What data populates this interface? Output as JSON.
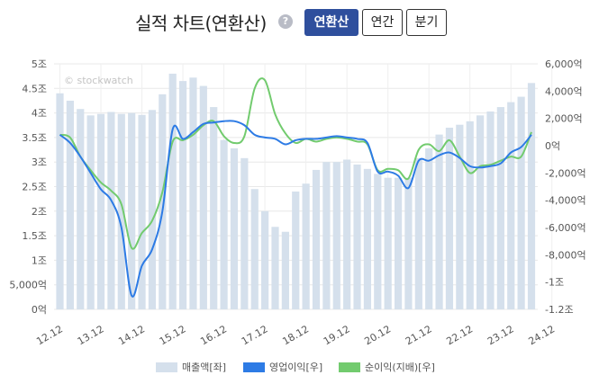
{
  "header": {
    "title": "실적 차트(연환산)",
    "help_icon": "?",
    "buttons": [
      "연환산",
      "연간",
      "분기"
    ],
    "active_button": "연환산"
  },
  "watermark": "© stockwatch",
  "legend": [
    {
      "label": "매출액[좌]",
      "color": "#d5e0ec"
    },
    {
      "label": "영업이익[우]",
      "color": "#2d7be5"
    },
    {
      "label": "순이익(지배)[우]",
      "color": "#72cb6e"
    }
  ],
  "chart_data": {
    "type": "bar",
    "x_tick_labels": [
      "12.12",
      "13.12",
      "14.12",
      "15.12",
      "16.12",
      "17.12",
      "18.12",
      "19.12",
      "20.12",
      "21.12",
      "22.12",
      "23.12",
      "24.12"
    ],
    "left_axis": {
      "ticks": [
        0,
        5000,
        10000,
        15000,
        20000,
        25000,
        30000,
        35000,
        40000,
        45000,
        50000
      ],
      "tick_labels": [
        "0억",
        "5,000억",
        "1조",
        "1.5조",
        "2조",
        "2.5조",
        "3조",
        "3.5조",
        "4조",
        "4.5조",
        "5조"
      ],
      "ylim": [
        0,
        50000
      ],
      "unit": "억"
    },
    "right_axis": {
      "ticks": [
        -12000,
        -10000,
        -8000,
        -6000,
        -4000,
        -2000,
        0,
        2000,
        4000,
        6000
      ],
      "tick_labels": [
        "-1.2조",
        "-1조",
        "-8,000억",
        "-6,000억",
        "-4,000억",
        "-2,000억",
        "0억",
        "2,000억",
        "4,000억",
        "6,000억"
      ],
      "ylim": [
        -12000,
        6000
      ],
      "unit": "억"
    },
    "grid": true,
    "legend_position": "bottom",
    "series": [
      {
        "name": "매출액[좌]",
        "type": "bar",
        "axis": "left",
        "values": [
          44000,
          42500,
          40800,
          39500,
          39800,
          40200,
          39800,
          40000,
          39600,
          40600,
          43800,
          48000,
          46500,
          47200,
          45500,
          41200,
          34500,
          32800,
          30800,
          24500,
          20000,
          16800,
          15800,
          24000,
          25600,
          28400,
          30000,
          30000,
          30500,
          29500,
          28600,
          27600,
          26800,
          26800,
          26800,
          30800,
          32800,
          35600,
          37000,
          37600,
          38300,
          39500,
          40300,
          41200,
          42200,
          43300,
          46100
        ]
      },
      {
        "name": "영업이익[우]",
        "type": "line",
        "axis": "right",
        "values": [
          800,
          200,
          -800,
          -2000,
          -3200,
          -4000,
          -6000,
          -11000,
          -8800,
          -7600,
          -4800,
          1200,
          500,
          1000,
          1600,
          1700,
          1800,
          1800,
          1500,
          800,
          600,
          500,
          100,
          400,
          500,
          500,
          600,
          700,
          600,
          500,
          200,
          -1900,
          -1900,
          -2200,
          -3100,
          -1100,
          -1100,
          -700,
          -500,
          -900,
          -1500,
          -1600,
          -1500,
          -1300,
          -500,
          -100,
          800
        ]
      },
      {
        "name": "순이익(지배)[우]",
        "type": "line",
        "axis": "right",
        "values": [
          800,
          600,
          -800,
          -1800,
          -2700,
          -3300,
          -4300,
          -7500,
          -6400,
          -5500,
          -3400,
          300,
          400,
          800,
          1500,
          1800,
          700,
          200,
          700,
          4200,
          4800,
          2300,
          900,
          200,
          500,
          300,
          500,
          600,
          500,
          300,
          100,
          -1800,
          -1700,
          -1800,
          -2400,
          -300,
          100,
          -400,
          400,
          -800,
          -2000,
          -1500,
          -1400,
          -1100,
          -800,
          -800,
          1000
        ]
      }
    ]
  }
}
